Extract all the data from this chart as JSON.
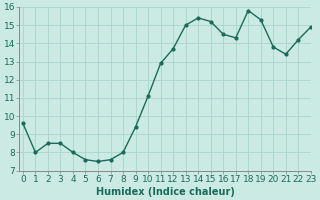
{
  "x": [
    0,
    1,
    2,
    3,
    4,
    5,
    6,
    7,
    8,
    9,
    10,
    11,
    12,
    13,
    14,
    15,
    16,
    17,
    18,
    19,
    20,
    21,
    22,
    23
  ],
  "y": [
    9.6,
    8.0,
    8.5,
    8.5,
    8.0,
    7.6,
    7.5,
    7.6,
    8.0,
    9.4,
    11.1,
    12.9,
    13.7,
    15.0,
    15.4,
    15.2,
    14.5,
    14.3,
    15.8,
    15.3,
    13.8,
    13.4,
    14.2,
    14.9
  ],
  "line_color": "#1a6b5a",
  "bg_color": "#cceae4",
  "grid_color": "#aad4cc",
  "xlabel": "Humidex (Indice chaleur)",
  "ylim": [
    7,
    16
  ],
  "xlim": [
    -0.3,
    23
  ],
  "yticks": [
    7,
    8,
    9,
    10,
    11,
    12,
    13,
    14,
    15,
    16
  ],
  "xticks": [
    0,
    1,
    2,
    3,
    4,
    5,
    6,
    7,
    8,
    9,
    10,
    11,
    12,
    13,
    14,
    15,
    16,
    17,
    18,
    19,
    20,
    21,
    22,
    23
  ],
  "xlabel_fontsize": 7,
  "tick_fontsize": 6.5,
  "marker": "o",
  "markersize": 2.0,
  "linewidth": 1.0
}
